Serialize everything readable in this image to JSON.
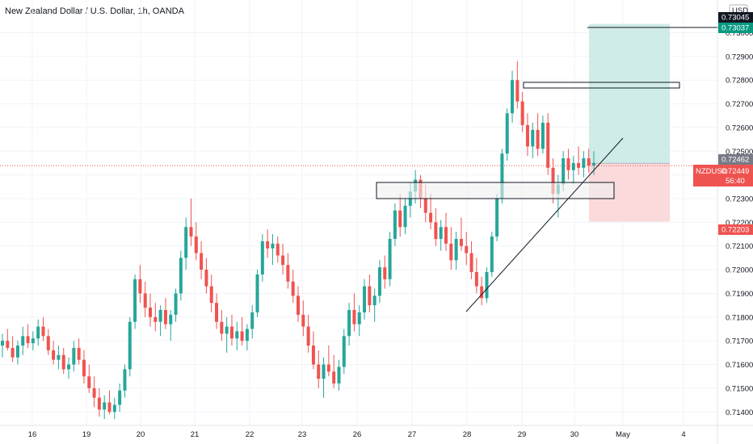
{
  "header": {
    "title": "New Zealand Dollar / U.S. Dollar, 1h, OANDA"
  },
  "currency_label": "USD",
  "colors": {
    "up": "#26a69a",
    "down": "#ef5350",
    "grid": "#f0f3fa",
    "axis_text": "#131722",
    "target_zone": "#cfece8",
    "stop_zone": "#fadadb",
    "price_tag": "#ef5350",
    "target_tag": "#089981",
    "last_tag": "#787b86"
  },
  "chart_data": {
    "type": "candlestick",
    "symbol": "NZDUSD",
    "timeframe": "1h",
    "ylim": [
      0.7136,
      0.7308
    ],
    "y_ticks": [
      "0.73000",
      "0.72900",
      "0.72800",
      "0.72700",
      "0.72600",
      "0.72500",
      "0.72400",
      "0.72300",
      "0.72200",
      "0.72100",
      "0.72000",
      "0.71900",
      "0.71800",
      "0.71700",
      "0.71600",
      "0.71500",
      "0.71400"
    ],
    "x_ticks": [
      "16",
      "19",
      "20",
      "21",
      "22",
      "23",
      "26",
      "27",
      "28",
      "29",
      "30",
      "May",
      "4"
    ],
    "price_labels": {
      "top_cut": "0.73045",
      "target": "0.73037",
      "reference": "0.72462",
      "current_symbol": "NZDUSD",
      "current": "0.72449",
      "countdown": "56:40",
      "stop": "0.72203"
    },
    "candles_ohlc_approx": [
      [
        0.7168,
        0.7173,
        0.7163,
        0.717
      ],
      [
        0.717,
        0.7175,
        0.7166,
        0.7167
      ],
      [
        0.7167,
        0.7172,
        0.7161,
        0.7163
      ],
      [
        0.7163,
        0.717,
        0.716,
        0.7168
      ],
      [
        0.7168,
        0.7176,
        0.7164,
        0.7172
      ],
      [
        0.7172,
        0.7177,
        0.7167,
        0.7169
      ],
      [
        0.7169,
        0.7174,
        0.7166,
        0.7171
      ],
      [
        0.7171,
        0.7179,
        0.7168,
        0.7176
      ],
      [
        0.7176,
        0.718,
        0.717,
        0.7172
      ],
      [
        0.7172,
        0.7175,
        0.7164,
        0.7166
      ],
      [
        0.7166,
        0.717,
        0.716,
        0.7162
      ],
      [
        0.7162,
        0.7168,
        0.7158,
        0.7164
      ],
      [
        0.7164,
        0.7167,
        0.7156,
        0.7158
      ],
      [
        0.7158,
        0.7163,
        0.7154,
        0.716
      ],
      [
        0.716,
        0.717,
        0.7157,
        0.7167
      ],
      [
        0.7167,
        0.7171,
        0.716,
        0.7162
      ],
      [
        0.7162,
        0.7166,
        0.7152,
        0.7155
      ],
      [
        0.7155,
        0.716,
        0.7148,
        0.715
      ],
      [
        0.715,
        0.7155,
        0.7142,
        0.7146
      ],
      [
        0.7146,
        0.715,
        0.7138,
        0.7141
      ],
      [
        0.7141,
        0.7147,
        0.7137,
        0.7144
      ],
      [
        0.7144,
        0.7149,
        0.7139,
        0.714
      ],
      [
        0.714,
        0.7146,
        0.7137,
        0.7143
      ],
      [
        0.7143,
        0.7152,
        0.714,
        0.7149
      ],
      [
        0.7149,
        0.716,
        0.7146,
        0.7158
      ],
      [
        0.7158,
        0.718,
        0.7155,
        0.7178
      ],
      [
        0.7178,
        0.7198,
        0.7175,
        0.7196
      ],
      [
        0.7196,
        0.7202,
        0.7186,
        0.719
      ],
      [
        0.719,
        0.7195,
        0.718,
        0.7184
      ],
      [
        0.7184,
        0.719,
        0.7176,
        0.718
      ],
      [
        0.718,
        0.7186,
        0.7174,
        0.7178
      ],
      [
        0.7178,
        0.7185,
        0.7172,
        0.7183
      ],
      [
        0.7183,
        0.7188,
        0.7175,
        0.7177
      ],
      [
        0.7177,
        0.7183,
        0.717,
        0.7181
      ],
      [
        0.7181,
        0.7192,
        0.7178,
        0.719
      ],
      [
        0.719,
        0.7208,
        0.7187,
        0.7205
      ],
      [
        0.7205,
        0.7222,
        0.72,
        0.7218
      ],
      [
        0.7218,
        0.723,
        0.721,
        0.7214
      ],
      [
        0.7214,
        0.722,
        0.7204,
        0.7207
      ],
      [
        0.7207,
        0.7212,
        0.7196,
        0.72
      ],
      [
        0.72,
        0.7205,
        0.719,
        0.7193
      ],
      [
        0.7193,
        0.7198,
        0.7182,
        0.7186
      ],
      [
        0.7186,
        0.719,
        0.7175,
        0.7178
      ],
      [
        0.7178,
        0.7183,
        0.717,
        0.7173
      ],
      [
        0.7173,
        0.718,
        0.7165,
        0.7176
      ],
      [
        0.7176,
        0.7181,
        0.7168,
        0.7171
      ],
      [
        0.7171,
        0.7178,
        0.7166,
        0.7174
      ],
      [
        0.7174,
        0.718,
        0.7168,
        0.717
      ],
      [
        0.717,
        0.7177,
        0.7166,
        0.7175
      ],
      [
        0.7175,
        0.7185,
        0.7171,
        0.7182
      ],
      [
        0.7182,
        0.72,
        0.718,
        0.7198
      ],
      [
        0.7198,
        0.7215,
        0.7195,
        0.7212
      ],
      [
        0.7212,
        0.7217,
        0.7205,
        0.7209
      ],
      [
        0.7209,
        0.7215,
        0.7202,
        0.7211
      ],
      [
        0.7211,
        0.7214,
        0.7203,
        0.7206
      ],
      [
        0.7206,
        0.7211,
        0.7198,
        0.7202
      ],
      [
        0.7202,
        0.7207,
        0.7192,
        0.7195
      ],
      [
        0.7195,
        0.72,
        0.7186,
        0.7189
      ],
      [
        0.7189,
        0.7193,
        0.7178,
        0.7181
      ],
      [
        0.7181,
        0.7187,
        0.7172,
        0.7176
      ],
      [
        0.7176,
        0.7181,
        0.7165,
        0.7168
      ],
      [
        0.7168,
        0.7174,
        0.7158,
        0.716
      ],
      [
        0.716,
        0.7166,
        0.715,
        0.7154
      ],
      [
        0.7154,
        0.7163,
        0.7146,
        0.716
      ],
      [
        0.716,
        0.7168,
        0.7155,
        0.7157
      ],
      [
        0.7157,
        0.7164,
        0.715,
        0.7152
      ],
      [
        0.7152,
        0.7162,
        0.7149,
        0.7159
      ],
      [
        0.7159,
        0.7175,
        0.7156,
        0.7172
      ],
      [
        0.7172,
        0.7186,
        0.7168,
        0.7183
      ],
      [
        0.7183,
        0.719,
        0.7174,
        0.7177
      ],
      [
        0.7177,
        0.7185,
        0.7172,
        0.7182
      ],
      [
        0.7182,
        0.7196,
        0.7179,
        0.7193
      ],
      [
        0.7193,
        0.7198,
        0.7182,
        0.7185
      ],
      [
        0.7185,
        0.7192,
        0.7178,
        0.7189
      ],
      [
        0.7189,
        0.7204,
        0.7186,
        0.7201
      ],
      [
        0.7201,
        0.7206,
        0.7192,
        0.7196
      ],
      [
        0.7196,
        0.7216,
        0.7193,
        0.7213
      ],
      [
        0.7213,
        0.7228,
        0.721,
        0.7225
      ],
      [
        0.7225,
        0.7232,
        0.7214,
        0.7218
      ],
      [
        0.7218,
        0.723,
        0.7215,
        0.7227
      ],
      [
        0.7227,
        0.7237,
        0.7222,
        0.7233
      ],
      [
        0.7233,
        0.7242,
        0.7228,
        0.7238
      ],
      [
        0.7238,
        0.724,
        0.7226,
        0.723
      ],
      [
        0.723,
        0.7236,
        0.722,
        0.7224
      ],
      [
        0.7224,
        0.7232,
        0.7217,
        0.722
      ],
      [
        0.722,
        0.7226,
        0.721,
        0.7213
      ],
      [
        0.7213,
        0.7221,
        0.7208,
        0.7218
      ],
      [
        0.7218,
        0.7224,
        0.7208,
        0.7211
      ],
      [
        0.7211,
        0.7218,
        0.72,
        0.7204
      ],
      [
        0.7204,
        0.7216,
        0.72,
        0.7213
      ],
      [
        0.7213,
        0.7222,
        0.7208,
        0.721
      ],
      [
        0.721,
        0.7216,
        0.7202,
        0.7207
      ],
      [
        0.7207,
        0.7212,
        0.7196,
        0.7199
      ],
      [
        0.7199,
        0.7205,
        0.719,
        0.7193
      ],
      [
        0.7193,
        0.7197,
        0.7185,
        0.7188
      ],
      [
        0.7188,
        0.7201,
        0.7186,
        0.7199
      ],
      [
        0.7199,
        0.7216,
        0.7197,
        0.7214
      ],
      [
        0.7214,
        0.7232,
        0.7212,
        0.723
      ],
      [
        0.723,
        0.7251,
        0.7228,
        0.7249
      ],
      [
        0.7249,
        0.7268,
        0.7246,
        0.7266
      ],
      [
        0.7266,
        0.7284,
        0.7262,
        0.728
      ],
      [
        0.728,
        0.7288,
        0.7268,
        0.7271
      ],
      [
        0.7271,
        0.7275,
        0.7258,
        0.7261
      ],
      [
        0.7261,
        0.7266,
        0.7248,
        0.7252
      ],
      [
        0.7252,
        0.7262,
        0.7247,
        0.7259
      ],
      [
        0.7259,
        0.7266,
        0.7248,
        0.7251
      ],
      [
        0.7251,
        0.7265,
        0.7249,
        0.7262
      ],
      [
        0.7262,
        0.7266,
        0.724,
        0.7243
      ],
      [
        0.7243,
        0.7247,
        0.7228,
        0.7232
      ],
      [
        0.7232,
        0.724,
        0.7222,
        0.7236
      ],
      [
        0.7236,
        0.725,
        0.7233,
        0.7247
      ],
      [
        0.7247,
        0.7251,
        0.7238,
        0.7242
      ],
      [
        0.7242,
        0.7248,
        0.7236,
        0.7245
      ],
      [
        0.7245,
        0.7252,
        0.724,
        0.7243
      ],
      [
        0.7243,
        0.725,
        0.7239,
        0.7247
      ],
      [
        0.7247,
        0.7251,
        0.7241,
        0.7244
      ],
      [
        0.7244,
        0.725,
        0.724,
        0.7245
      ]
    ],
    "annotations": {
      "boxes": [
        {
          "price_top": 0.7234,
          "price_bottom": 0.72318
        },
        {
          "price_top": 0.7281,
          "price_bottom": 0.728
        }
      ],
      "trendline": {
        "from_price": 0.71865,
        "to_price": 0.7259
      },
      "position": {
        "target": 0.73037,
        "entry": 0.72449,
        "stop": 0.72203
      }
    }
  }
}
